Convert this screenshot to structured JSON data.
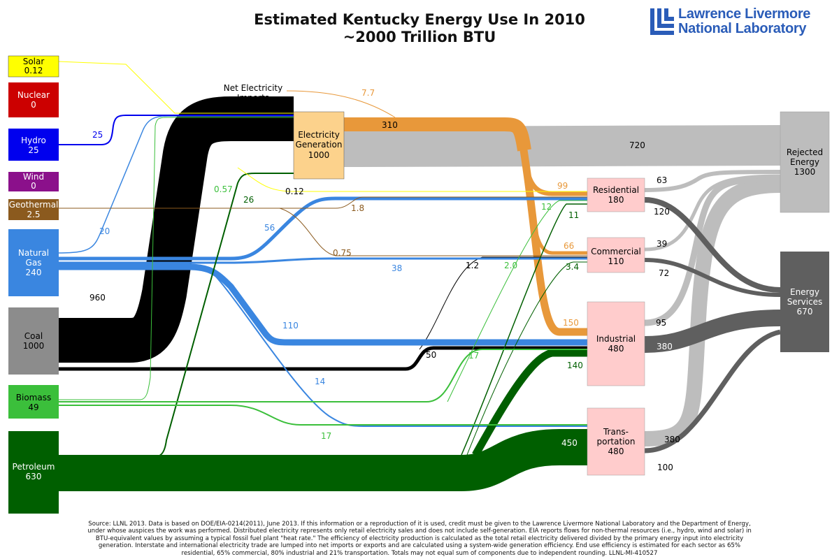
{
  "title": {
    "line1": "Estimated Kentucky Energy Use In 2010",
    "line2": "~2000 Trillion BTU"
  },
  "logo": {
    "line1": "Lawrence Livermore",
    "line2": "National Laboratory"
  },
  "colors": {
    "solar": "#ffff00",
    "nuclear": "#cc0000",
    "hydro": "#0000ee",
    "wind": "#8b108b",
    "geothermal": "#8b5a1e",
    "natural_gas": "#3a86e0",
    "coal": "#000000",
    "coal_box": "#8c8c8c",
    "biomass": "#3bbf3b",
    "petroleum": "#005f00",
    "electricity": "#e8983a",
    "electricity_box": "#fcd28c",
    "sector_box": "#ffcccc",
    "rejected": "#bdbdbd",
    "services": "#5f5f5f"
  },
  "sources": [
    {
      "id": "solar",
      "label": "Solar",
      "value": "0.12"
    },
    {
      "id": "nuclear",
      "label": "Nuclear",
      "value": "0"
    },
    {
      "id": "hydro",
      "label": "Hydro",
      "value": "25"
    },
    {
      "id": "wind",
      "label": "Wind",
      "value": "0"
    },
    {
      "id": "geothermal",
      "label": "Geothermal",
      "value": "2.5"
    },
    {
      "id": "natural_gas",
      "label": "Natural Gas",
      "value": "240"
    },
    {
      "id": "coal",
      "label": "Coal",
      "value": "1000"
    },
    {
      "id": "biomass",
      "label": "Biomass",
      "value": "49"
    },
    {
      "id": "petroleum",
      "label": "Petroleum",
      "value": "630"
    }
  ],
  "net_imports": {
    "label": "Net Electricity Imports",
    "value": "7.7"
  },
  "electricity_generation": {
    "label": "Electricity Generation",
    "value": "1000"
  },
  "sectors": [
    {
      "id": "residential",
      "label": "Residential",
      "value": "180"
    },
    {
      "id": "commercial",
      "label": "Commercial",
      "value": "110"
    },
    {
      "id": "industrial",
      "label": "Industrial",
      "value": "480"
    },
    {
      "id": "transportation",
      "label": "Trans- portation",
      "value": "480"
    }
  ],
  "outputs": [
    {
      "id": "rejected",
      "label": "Rejected Energy",
      "value": "1300"
    },
    {
      "id": "services",
      "label": "Energy Services",
      "value": "670"
    }
  ],
  "flows": [
    {
      "from": "solar",
      "to": "electricity",
      "value": 0.12,
      "label": ""
    },
    {
      "from": "solar",
      "to": "residential",
      "value": 0.12,
      "label": "0.12"
    },
    {
      "from": "hydro",
      "to": "electricity",
      "value": 25,
      "label": "25"
    },
    {
      "from": "geothermal",
      "to": "residential",
      "value": 1.8,
      "label": "1.8"
    },
    {
      "from": "geothermal",
      "to": "commercial",
      "value": 0.75,
      "label": "0.75"
    },
    {
      "from": "natural_gas",
      "to": "electricity",
      "value": 20,
      "label": "20"
    },
    {
      "from": "natural_gas",
      "to": "residential",
      "value": 56,
      "label": "56"
    },
    {
      "from": "natural_gas",
      "to": "commercial",
      "value": 38,
      "label": "38"
    },
    {
      "from": "natural_gas",
      "to": "industrial",
      "value": 110,
      "label": "110"
    },
    {
      "from": "natural_gas",
      "to": "transportation",
      "value": 14,
      "label": "14"
    },
    {
      "from": "coal",
      "to": "electricity",
      "value": 960,
      "label": "960"
    },
    {
      "from": "coal",
      "to": "commercial",
      "value": 1.2,
      "label": "1.2"
    },
    {
      "from": "coal",
      "to": "industrial",
      "value": 50,
      "label": "50"
    },
    {
      "from": "biomass",
      "to": "electricity",
      "value": 0.57,
      "label": "0.57"
    },
    {
      "from": "biomass",
      "to": "commercial",
      "value": 2.0,
      "label": "2.0"
    },
    {
      "from": "biomass",
      "to": "industrial",
      "value": 17,
      "label": "17"
    },
    {
      "from": "biomass",
      "to": "transportation",
      "value": 17,
      "label": "17"
    },
    {
      "from": "petroleum",
      "to": "electricity",
      "value": 26,
      "label": "26"
    },
    {
      "from": "petroleum",
      "to": "residential",
      "value": 12,
      "label": "12"
    },
    {
      "from": "petroleum",
      "to": "commercial",
      "value": 3.4,
      "label": "3.4"
    },
    {
      "from": "petroleum",
      "to": "industrial",
      "value": 140,
      "label": "140"
    },
    {
      "from": "petroleum",
      "to": "transportation",
      "value": 450,
      "label": "450"
    },
    {
      "from": "net_imports",
      "to": "electricity",
      "value": 7.7,
      "label": "7.7"
    },
    {
      "from": "electricity",
      "to": "sectors",
      "value": 310,
      "label": "310"
    },
    {
      "from": "electricity",
      "to": "rejected",
      "value": 720,
      "label": "720"
    },
    {
      "from": "electricity",
      "to": "residential",
      "value": 99,
      "label": "99"
    },
    {
      "from": "electricity",
      "to": "commercial",
      "value": 66,
      "label": "66"
    },
    {
      "from": "electricity",
      "to": "industrial",
      "value": 150,
      "label": "150"
    },
    {
      "from": "petroleum",
      "to": "residential_direct",
      "value": 11,
      "label": "11"
    },
    {
      "from": "residential",
      "to": "rejected",
      "value": 63,
      "label": "63"
    },
    {
      "from": "residential",
      "to": "services",
      "value": 120,
      "label": "120"
    },
    {
      "from": "commercial",
      "to": "rejected",
      "value": 39,
      "label": "39"
    },
    {
      "from": "commercial",
      "to": "services",
      "value": 72,
      "label": "72"
    },
    {
      "from": "industrial",
      "to": "rejected",
      "value": 95,
      "label": "95"
    },
    {
      "from": "industrial",
      "to": "services",
      "value": 380,
      "label": "380"
    },
    {
      "from": "transportation",
      "to": "rejected",
      "value": 380,
      "label": "380"
    },
    {
      "from": "transportation",
      "to": "services",
      "value": 100,
      "label": "100"
    }
  ],
  "footnote": "Source: LLNL 2013. Data is based on DOE/EIA-0214(2011), June 2013. If this information or a reproduction of it is used, credit must be given to the Lawrence Livermore National Laboratory and the Department of Energy, under whose auspices the work was performed. Distributed electricity represents only retail electricity sales and does not include self-generation. EIA reports flows for non-thermal resources (i.e., hydro, wind and solar) in BTU-equivalent values by assuming a typical fossil fuel plant \"heat rate.\" The efficiency of electricity production is calculated as the total retail electricity delivered divided by the primary energy input into electricity generation. Interstate and international electricity trade are lumped into net imports or exports and are calculated using a system-wide generation efficiency. End use efficiency is estimated for each sector as 65% residential, 65% commercial, 80% industrial and 21% transportation. Totals may not equal sum of components due to independent rounding. LLNL-MI-410527"
}
